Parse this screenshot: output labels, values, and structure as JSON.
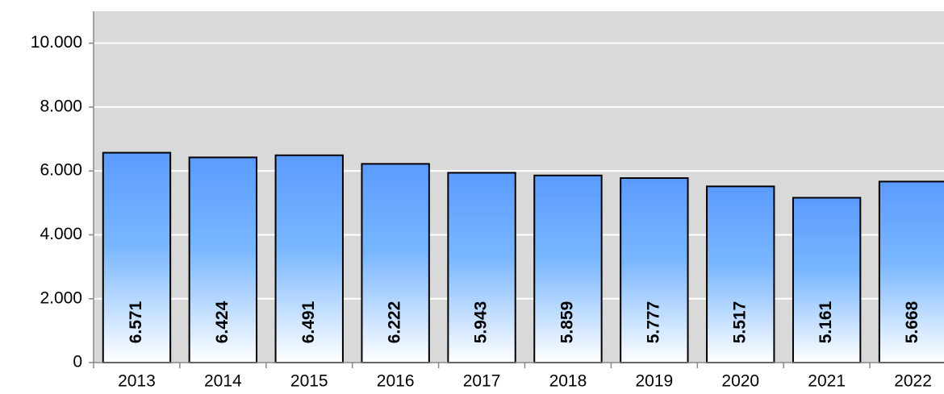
{
  "chart_data": {
    "type": "bar",
    "categories": [
      "2013",
      "2014",
      "2015",
      "2016",
      "2017",
      "2018",
      "2019",
      "2020",
      "2021",
      "2022"
    ],
    "values": [
      6571,
      6424,
      6491,
      6222,
      5943,
      5859,
      5777,
      5517,
      5161,
      5668
    ],
    "value_labels": [
      "6.571",
      "6.424",
      "6.491",
      "6.222",
      "5.943",
      "5.859",
      "5.777",
      "5.517",
      "5.161",
      "5.668"
    ],
    "color": "#5b9bff",
    "ylim": [
      0,
      11000
    ],
    "yticks": [
      0,
      {
        "value": 2000,
        "label": "2.000"
      },
      {
        "value": 4000,
        "label": "4.000"
      },
      {
        "value": 6000,
        "label": "6.000"
      },
      {
        "value": 8000,
        "label": "8.000"
      },
      {
        "value": 10000,
        "label": "10.000"
      }
    ],
    "grid": true
  }
}
